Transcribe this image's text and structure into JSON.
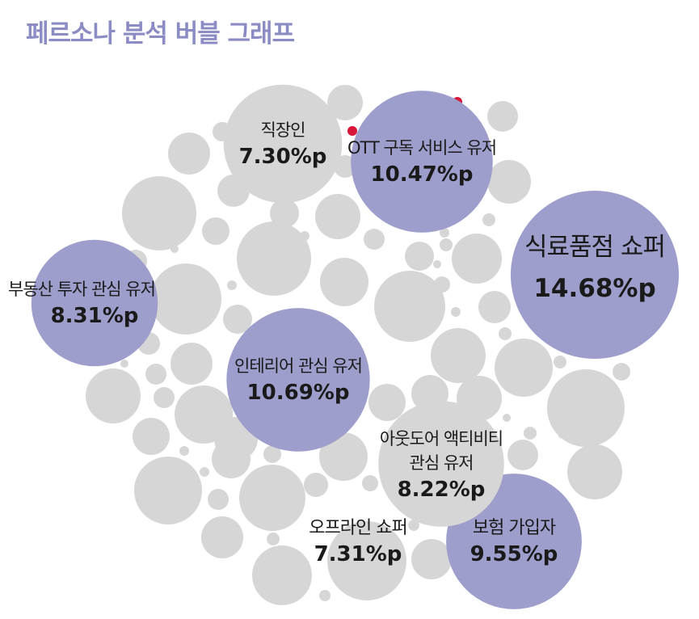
{
  "chart_data": {
    "type": "bubble",
    "title": "페르소나 분석 버블 그래프",
    "unit": "%p",
    "series": [
      {
        "name": "식료품점 쇼퍼",
        "value": 14.68,
        "label": "14.68%p"
      },
      {
        "name": "인테리어 관심 유저",
        "value": 10.69,
        "label": "10.69%p"
      },
      {
        "name": "OTT 구독 서비스 유저",
        "value": 10.47,
        "label": "10.47%p"
      },
      {
        "name": "보험 가입자",
        "value": 9.55,
        "label": "9.55%p"
      },
      {
        "name": "부동산 투자 관심 유저",
        "value": 8.31,
        "label": "8.31%p"
      },
      {
        "name": "아웃도어 액티비티 관심 유저",
        "value": 8.22,
        "label": "8.22%p"
      },
      {
        "name": "오프라인 쇼퍼",
        "value": 7.31,
        "label": "7.31%p"
      },
      {
        "name": "직장인",
        "value": 7.3,
        "label": "7.30%p"
      }
    ],
    "colors": {
      "highlight": "#9d9ecc",
      "bubble": "#d6d6d6",
      "accent_dot": "#d7163a",
      "title": "#8b8cc4",
      "text": "#1a1a1a"
    }
  }
}
